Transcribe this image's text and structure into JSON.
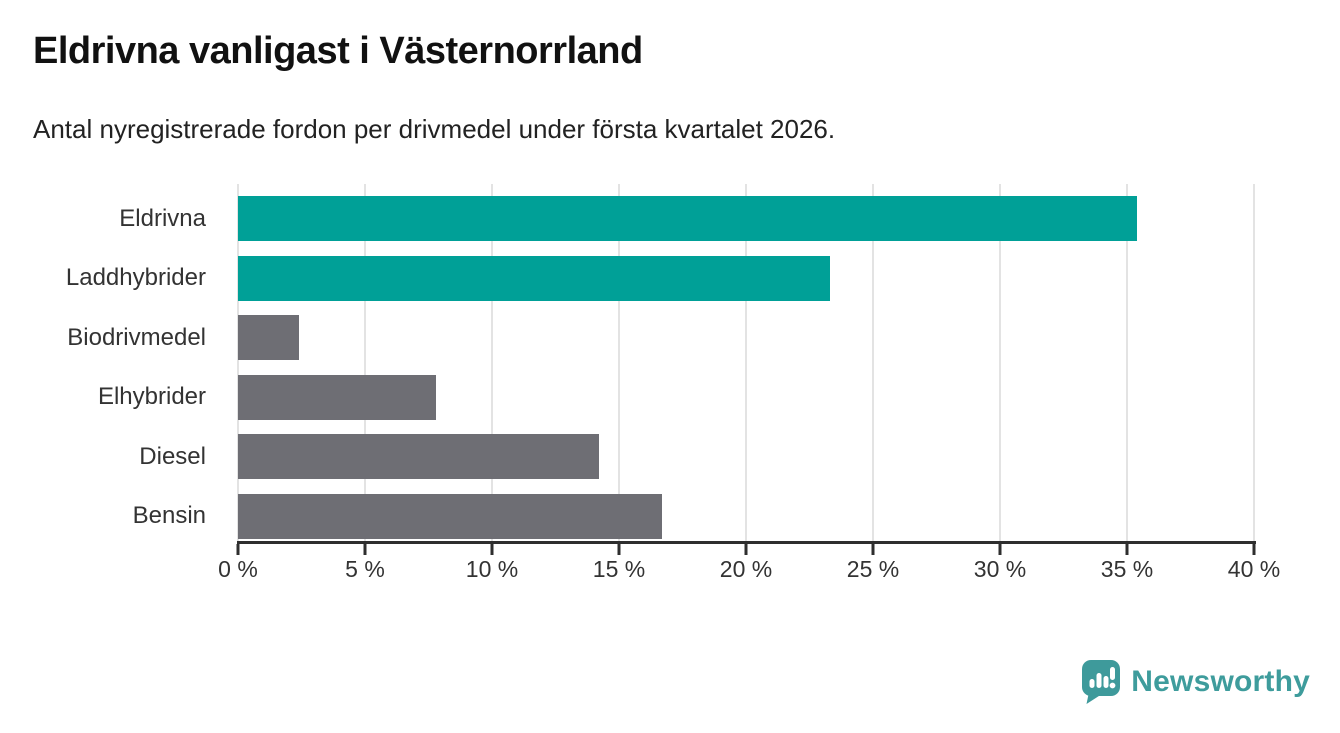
{
  "header": {
    "title": "Eldrivna vanligast i Västernorrland",
    "subtitle": "Antal nyregistrerade fordon per drivmedel under första kvartalet 2026."
  },
  "chart_data": {
    "type": "bar",
    "orientation": "horizontal",
    "title": "Eldrivna vanligast i Västernorrland",
    "subtitle": "Antal nyregistrerade fordon per drivmedel under första kvartalet 2026.",
    "categories": [
      "Eldrivna",
      "Laddhybrider",
      "Biodrivmedel",
      "Elhybrider",
      "Diesel",
      "Bensin"
    ],
    "values": [
      35.4,
      23.3,
      2.4,
      7.8,
      14.2,
      16.7
    ],
    "unit": "%",
    "bar_colors": [
      "#00a097",
      "#00a097",
      "#6e6e74",
      "#6e6e74",
      "#6e6e74",
      "#6e6e74"
    ],
    "highlight_color": "#00a097",
    "default_color": "#6e6e74",
    "xlim": [
      0,
      40
    ],
    "x_ticks": [
      0,
      5,
      10,
      15,
      20,
      25,
      30,
      35,
      40
    ],
    "x_tick_labels": [
      "0 %",
      "5 %",
      "10 %",
      "15 %",
      "20 %",
      "25 %",
      "30 %",
      "35 %",
      "40 %"
    ],
    "grid": true,
    "gridline_color": "#e3e3e3",
    "axis_color": "#2e2e2e",
    "tick_label_color": "#333333",
    "category_label_color": "#333333",
    "legend": "none"
  },
  "footer": {
    "brand": "Newsworthy",
    "brand_color": "#3e9c9c",
    "logo_icon": "newsworthy-speech-bubble-bar-chart-icon"
  }
}
